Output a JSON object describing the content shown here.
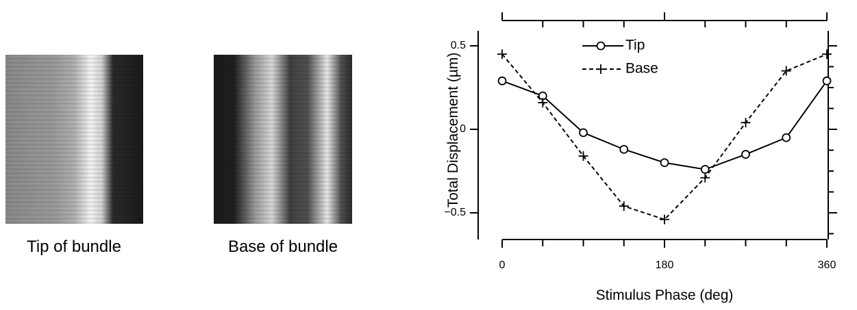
{
  "images": [
    {
      "caption": "Tip of bundle"
    },
    {
      "caption": "Base of bundle"
    }
  ],
  "chart_data": {
    "type": "line",
    "xlabel": "Stimulus Phase (deg)",
    "ylabel": "Total Displacement (µm)",
    "x": [
      0,
      45,
      90,
      135,
      180,
      225,
      270,
      315,
      360
    ],
    "series": [
      {
        "name": "Tip",
        "color": "#000000",
        "marker": "circle",
        "linestyle": "solid",
        "values": [
          0.29,
          0.2,
          -0.02,
          -0.12,
          -0.2,
          -0.24,
          -0.15,
          -0.05,
          0.29
        ]
      },
      {
        "name": "Base",
        "color": "#000000",
        "marker": "plus",
        "linestyle": "dashed",
        "values": [
          0.45,
          0.16,
          -0.16,
          -0.46,
          -0.54,
          -0.29,
          0.04,
          0.35,
          0.45
        ]
      }
    ],
    "xlim": [
      0,
      360
    ],
    "xticks": [
      0,
      180,
      360
    ],
    "xminorticks": [
      45,
      90,
      135,
      225,
      270,
      315
    ],
    "ylim": [
      -0.66,
      0.59
    ],
    "yticks": [
      0.5,
      0,
      {
        "value": -0.5,
        "label": "−0.5"
      }
    ],
    "yminorticks": [
      0.375,
      0.25,
      0.125,
      -0.125,
      -0.25,
      -0.375,
      -0.625
    ]
  }
}
